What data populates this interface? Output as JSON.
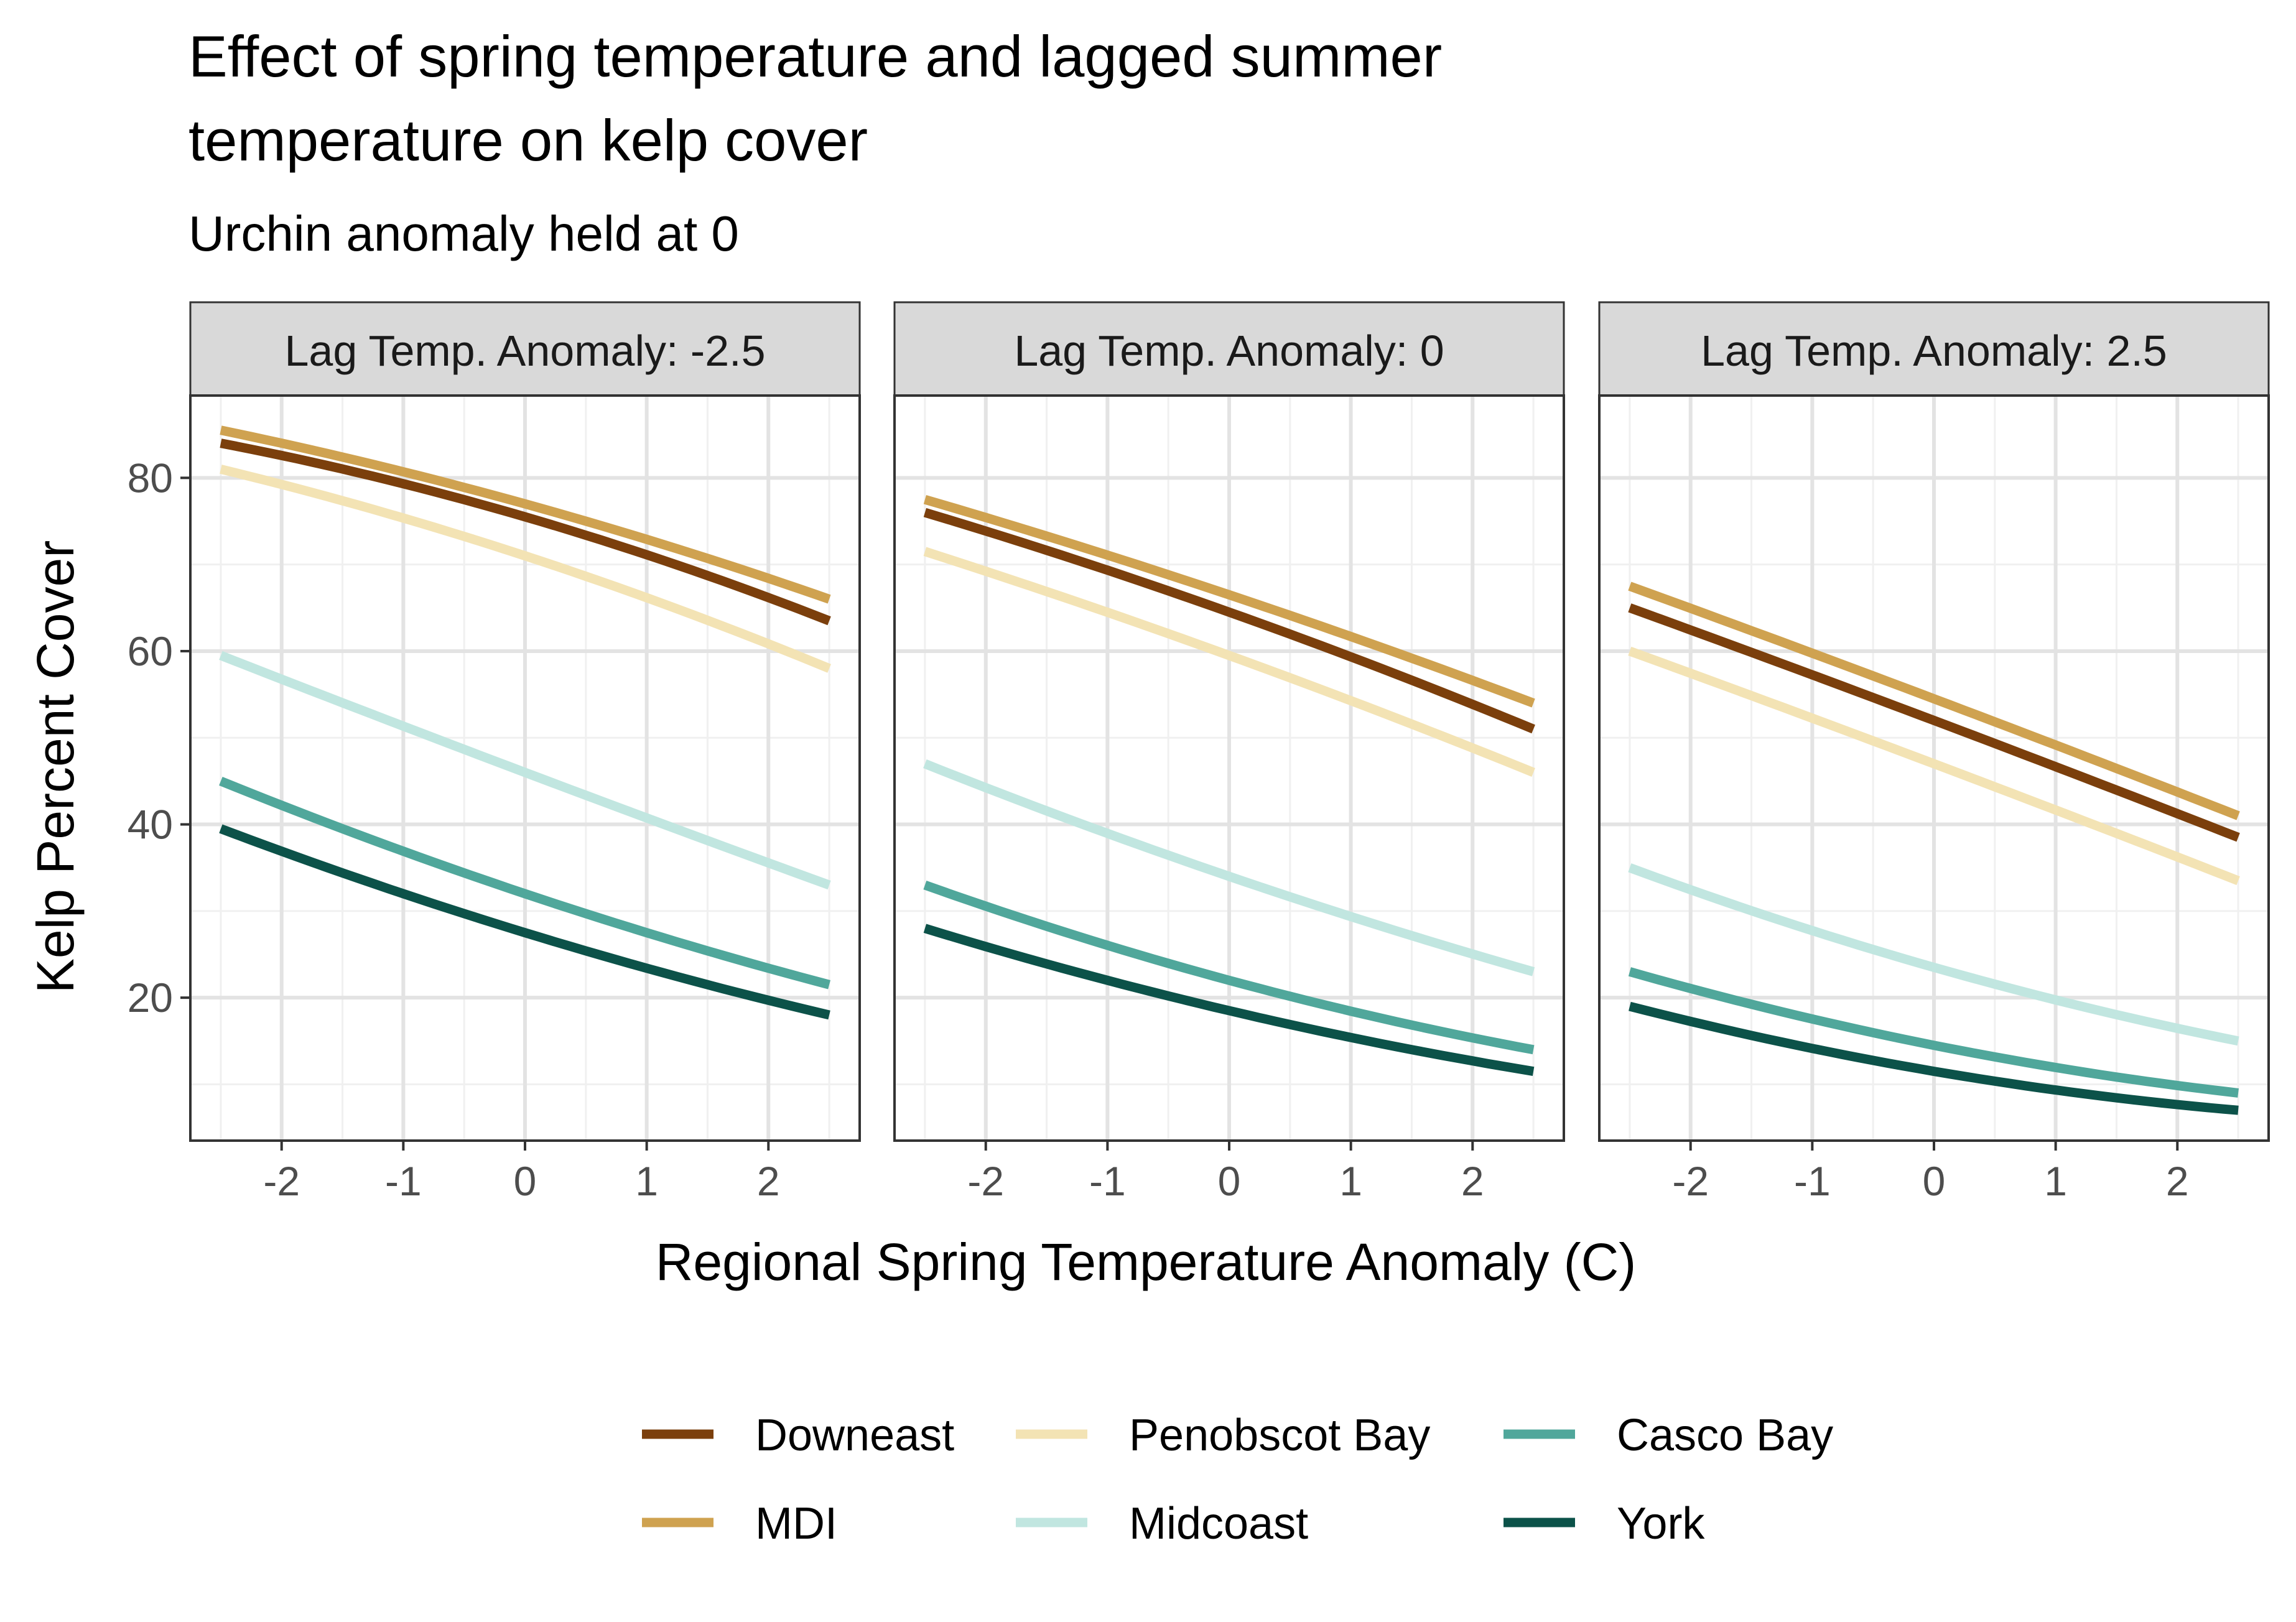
{
  "chart_data": {
    "type": "line",
    "title": "Effect of spring temperature and lagged summer temperature on kelp cover",
    "title_lines": [
      "Effect of spring temperature and lagged summer",
      "temperature on kelp cover"
    ],
    "subtitle": "Urchin anomaly held at 0",
    "xlabel": "Regional Spring Temperature Anomaly (C)",
    "ylabel": "Kelp Percent Cover",
    "xlim": [
      -2.75,
      2.75
    ],
    "ylim": [
      3.5,
      89.5
    ],
    "x_ticks": [
      -2,
      -1,
      0,
      1,
      2
    ],
    "x_tick_labels": [
      "-2",
      "-1",
      "0",
      "1",
      "2"
    ],
    "y_ticks": [
      20,
      40,
      60,
      80
    ],
    "y_tick_labels": [
      "20",
      "40",
      "60",
      "80"
    ],
    "grid": true,
    "legend_position": "bottom",
    "x": [
      -2.5,
      0,
      2.5
    ],
    "series_styles": [
      {
        "name": "Downeast",
        "color": "#7b3f0c"
      },
      {
        "name": "MDI",
        "color": "#cfa250"
      },
      {
        "name": "Penobscot Bay",
        "color": "#f3e3b4"
      },
      {
        "name": "Midcoast",
        "color": "#c1e6e0"
      },
      {
        "name": "Casco Bay",
        "color": "#50a79b"
      },
      {
        "name": "York",
        "color": "#0c5249"
      }
    ],
    "panels": [
      {
        "label": "Lag Temp. Anomaly: -2.5",
        "series": [
          {
            "name": "Downeast",
            "values": [
              84,
              75.5,
              63.5
            ]
          },
          {
            "name": "MDI",
            "values": [
              85.5,
              77,
              66
            ]
          },
          {
            "name": "Penobscot Bay",
            "values": [
              81,
              71,
              58
            ]
          },
          {
            "name": "Midcoast",
            "values": [
              59.5,
              46,
              33
            ]
          },
          {
            "name": "Casco Bay",
            "values": [
              45,
              32,
              21.5
            ]
          },
          {
            "name": "York",
            "values": [
              39.5,
              27.5,
              18
            ]
          }
        ]
      },
      {
        "label": "Lag Temp. Anomaly: 0",
        "series": [
          {
            "name": "Downeast",
            "values": [
              76,
              64.5,
              51
            ]
          },
          {
            "name": "MDI",
            "values": [
              77.5,
              66.5,
              54
            ]
          },
          {
            "name": "Penobscot Bay",
            "values": [
              71.5,
              59.5,
              46
            ]
          },
          {
            "name": "Midcoast",
            "values": [
              47,
              34,
              23
            ]
          },
          {
            "name": "Casco Bay",
            "values": [
              33,
              22,
              14
            ]
          },
          {
            "name": "York",
            "values": [
              28,
              18.5,
              11.5
            ]
          }
        ]
      },
      {
        "label": "Lag Temp. Anomaly: 2.5",
        "series": [
          {
            "name": "Downeast",
            "values": [
              65,
              52,
              38.5
            ]
          },
          {
            "name": "MDI",
            "values": [
              67.5,
              54.5,
              41
            ]
          },
          {
            "name": "Penobscot Bay",
            "values": [
              60,
              47,
              33.5
            ]
          },
          {
            "name": "Midcoast",
            "values": [
              35,
              23.5,
              15
            ]
          },
          {
            "name": "Casco Bay",
            "values": [
              23,
              14.5,
              9
            ]
          },
          {
            "name": "York",
            "values": [
              19,
              11.5,
              7
            ]
          }
        ]
      }
    ],
    "legend": {
      "columns": [
        [
          "Downeast",
          "MDI"
        ],
        [
          "Penobscot Bay",
          "Midcoast"
        ],
        [
          "Casco Bay",
          "York"
        ]
      ]
    }
  }
}
